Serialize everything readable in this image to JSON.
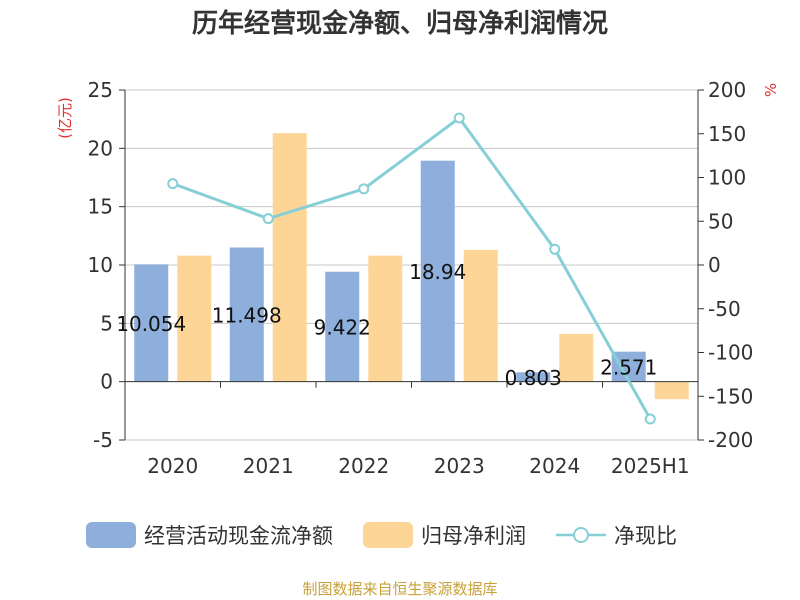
{
  "chart_data": {
    "type": "bar",
    "title": "历年经营现金净额、归母净利润情况",
    "categories": [
      "2020",
      "2021",
      "2022",
      "2023",
      "2024",
      "2025H1"
    ],
    "series": [
      {
        "name": "经营活动现金流净额",
        "type": "bar",
        "axis": "left",
        "color": "#8eaedb",
        "values": [
          10.054,
          11.498,
          9.422,
          18.94,
          0.803,
          2.571
        ],
        "labels": [
          "10.054",
          "11.498",
          "9.422",
          "18.94",
          "0.803",
          "2.571"
        ]
      },
      {
        "name": "归母净利润",
        "type": "bar",
        "axis": "left",
        "color": "#fdd597",
        "values": [
          10.8,
          21.3,
          10.8,
          11.3,
          4.1,
          -1.5
        ]
      },
      {
        "name": "净现比",
        "type": "line",
        "axis": "right",
        "color": "#86cfd6",
        "values": [
          93,
          53,
          87,
          168,
          18,
          -176
        ]
      }
    ],
    "left_axis": {
      "unit": "(亿元)",
      "ylim": [
        -5,
        25
      ],
      "ticks": [
        "-5",
        "0",
        "5",
        "10",
        "15",
        "20",
        "25"
      ]
    },
    "right_axis": {
      "unit": "%",
      "ylim": [
        -200,
        200
      ],
      "ticks": [
        "-200",
        "-150",
        "-100",
        "-50",
        "0",
        "50",
        "100",
        "150",
        "200"
      ]
    },
    "grid": true,
    "legend_position": "bottom",
    "source": "制图数据来自恒生聚源数据库"
  }
}
